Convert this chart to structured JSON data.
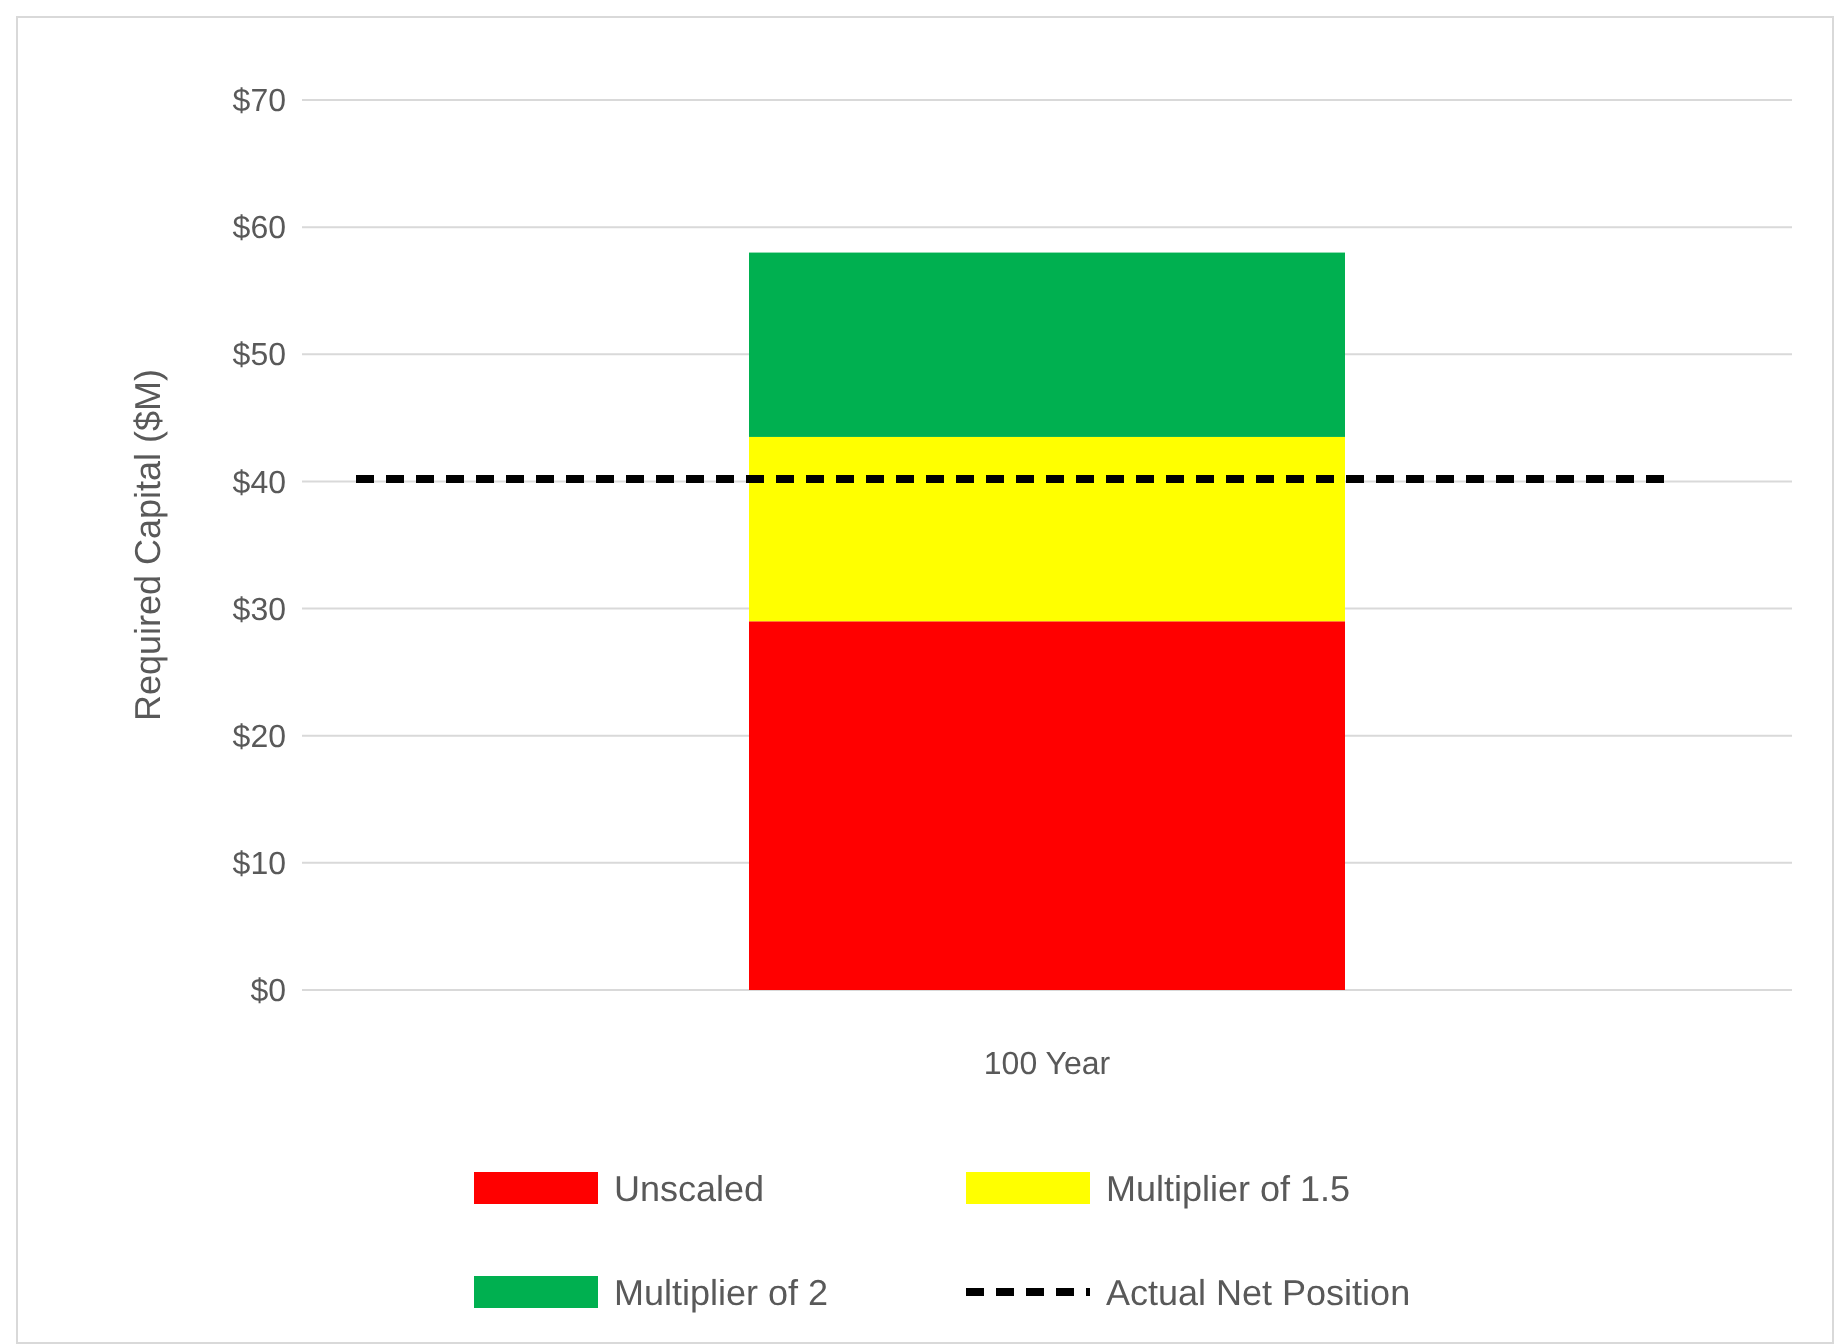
{
  "chart_data": {
    "type": "bar",
    "stacked": true,
    "ylabel": "Required Capital ($M)",
    "categories": [
      "100 Year"
    ],
    "series": [
      {
        "name": "Unscaled",
        "color": "#ff0000",
        "values": [
          29
        ]
      },
      {
        "name": "Multiplier of 1.5",
        "color": "#ffff00",
        "values": [
          14.5
        ]
      },
      {
        "name": "Multiplier of 2",
        "color": "#00b050",
        "values": [
          14.5
        ]
      }
    ],
    "ylim": [
      0,
      70
    ],
    "yticks": [
      {
        "value": 0,
        "label": "$0"
      },
      {
        "value": 10,
        "label": "$10"
      },
      {
        "value": 20,
        "label": "$20"
      },
      {
        "value": 30,
        "label": "$30"
      },
      {
        "value": 40,
        "label": "$40"
      },
      {
        "value": 50,
        "label": "$50"
      },
      {
        "value": 60,
        "label": "$60"
      },
      {
        "value": 70,
        "label": "$70"
      }
    ],
    "grid": "y",
    "legend": "bottom",
    "ref_lines": [
      {
        "axis": "y",
        "value": 40.2,
        "label": "Actual Net Position",
        "color": "#000000",
        "line_style": "dashed"
      }
    ]
  }
}
